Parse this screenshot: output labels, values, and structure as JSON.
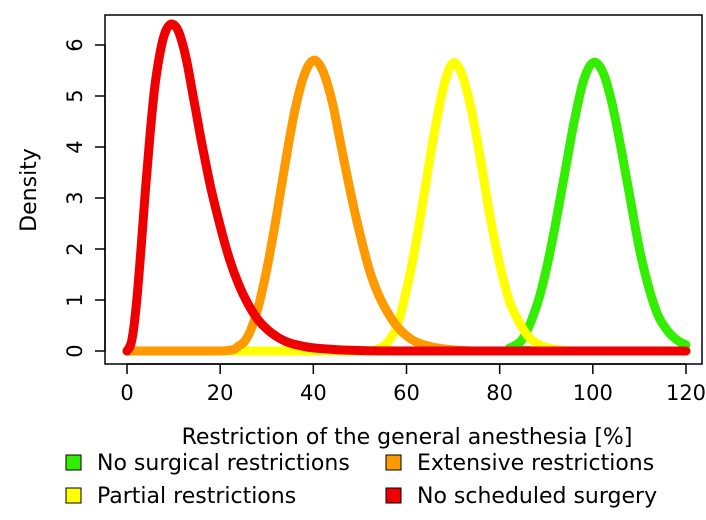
{
  "chart_data": {
    "type": "line",
    "xlabel": "Restriction of the general anesthesia [%]",
    "ylabel": "Density",
    "xlim": [
      0,
      120
    ],
    "ylim": [
      0,
      6.4
    ],
    "x_ticks": [
      0,
      20,
      40,
      60,
      80,
      100,
      120
    ],
    "y_ticks": [
      0,
      1,
      2,
      3,
      4,
      5,
      6
    ],
    "grid": false,
    "legend_position": "bottom",
    "series": [
      {
        "name": "No surgical restrictions",
        "color": "#33ee00",
        "x": [
          0,
          80,
          82,
          85,
          88,
          90,
          92,
          94,
          96,
          98,
          100,
          102,
          104,
          106,
          108,
          110,
          112,
          114,
          116,
          118,
          120
        ],
        "y": [
          0,
          0.0,
          0.05,
          0.25,
          0.9,
          1.6,
          2.5,
          3.5,
          4.5,
          5.3,
          5.65,
          5.5,
          4.9,
          4.0,
          3.0,
          2.0,
          1.25,
          0.7,
          0.4,
          0.22,
          0.12
        ]
      },
      {
        "name": "Partial restrictions",
        "color": "#ffff00",
        "x": [
          0,
          50,
          54,
          56,
          58,
          60,
          62,
          64,
          66,
          68,
          70,
          72,
          74,
          76,
          78,
          80,
          82,
          84,
          86,
          88,
          90,
          93,
          96,
          120
        ],
        "y": [
          0,
          0,
          0.05,
          0.18,
          0.5,
          1.2,
          2.1,
          3.2,
          4.3,
          5.2,
          5.65,
          5.4,
          4.7,
          3.7,
          2.6,
          1.7,
          1.0,
          0.6,
          0.3,
          0.15,
          0.07,
          0.02,
          0,
          0
        ]
      },
      {
        "name": "Extensive restrictions",
        "color": "#ff9900",
        "x": [
          0,
          20,
          24,
          26,
          28,
          30,
          32,
          34,
          36,
          38,
          40,
          42,
          44,
          46,
          48,
          50,
          52,
          54,
          56,
          58,
          60,
          62,
          65,
          68,
          72,
          80,
          120
        ],
        "y": [
          0,
          0,
          0.1,
          0.3,
          0.8,
          1.6,
          2.6,
          3.7,
          4.7,
          5.4,
          5.7,
          5.5,
          4.9,
          4.0,
          3.1,
          2.3,
          1.6,
          1.1,
          0.75,
          0.48,
          0.3,
          0.18,
          0.09,
          0.04,
          0.01,
          0,
          0
        ]
      },
      {
        "name": "No scheduled surgery",
        "color": "#ee0000",
        "x": [
          0,
          1,
          2,
          3,
          4,
          5,
          6,
          7,
          8,
          9,
          10,
          11,
          12,
          13,
          14,
          15,
          16,
          18,
          20,
          22,
          24,
          26,
          28,
          30,
          32,
          34,
          36,
          38,
          40,
          43,
          46,
          50,
          60,
          120
        ],
        "y": [
          0,
          0.2,
          0.9,
          2.0,
          3.2,
          4.3,
          5.2,
          5.8,
          6.2,
          6.38,
          6.4,
          6.28,
          6.0,
          5.6,
          5.1,
          4.6,
          4.1,
          3.2,
          2.45,
          1.8,
          1.3,
          0.92,
          0.63,
          0.43,
          0.29,
          0.19,
          0.13,
          0.09,
          0.06,
          0.04,
          0.02,
          0.01,
          0,
          0
        ]
      }
    ],
    "legend": [
      {
        "label": "No surgical restrictions",
        "color": "#33ee00"
      },
      {
        "label": "Extensive restrictions",
        "color": "#ff9900"
      },
      {
        "label": "Partial restrictions",
        "color": "#ffff00"
      },
      {
        "label": "No scheduled surgery",
        "color": "#ee0000"
      }
    ]
  }
}
